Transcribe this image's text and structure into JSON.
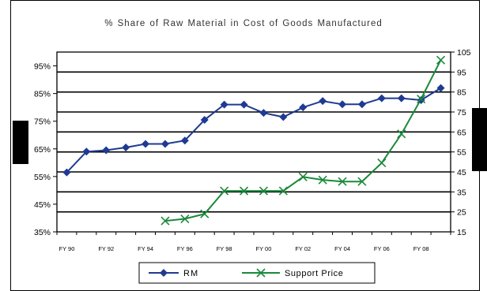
{
  "chart_data": {
    "type": "line",
    "title": "% Share of Raw Material in Cost of Goods Manufactured",
    "x": [
      "FY90",
      "FY91",
      "FY92",
      "FY93",
      "FY94",
      "FY95",
      "FY96",
      "FY97",
      "FY98",
      "FY99",
      "FY00",
      "FY01",
      "FY02",
      "FY03",
      "FY04",
      "FY05",
      "FY06",
      "FY07",
      "FY08",
      "FY09"
    ],
    "x_tick_labels": [
      "FY 90",
      "FY 92",
      "FY 94",
      "FY 96",
      "FY 98",
      "FY 00",
      "FY 02",
      "FY 04",
      "FY 06",
      "FY 08"
    ],
    "y_left": {
      "ticks": [
        "35%",
        "45%",
        "55%",
        "65%",
        "75%",
        "85%",
        "95%"
      ],
      "range": [
        35,
        100
      ]
    },
    "y_right": {
      "ticks": [
        "15",
        "25",
        "35",
        "45",
        "55",
        "65",
        "75",
        "85",
        "95",
        "105"
      ],
      "range": [
        15,
        105
      ]
    },
    "grid": "horizontal",
    "legend_position": "bottom",
    "series": [
      {
        "name": "RM",
        "axis": "left",
        "color": "#1f3a93",
        "marker": "diamond",
        "values": [
          56.5,
          64,
          64.5,
          65.5,
          66.8,
          66.8,
          68,
          75.5,
          81,
          81,
          78,
          76.5,
          80,
          82.3,
          81.1,
          81.1,
          83.3,
          83.3,
          82.6,
          87
        ]
      },
      {
        "name": "Support Price",
        "axis": "right",
        "color": "#1a8a3a",
        "marker": "x",
        "values": [
          null,
          null,
          null,
          null,
          null,
          20.5,
          21.5,
          24,
          35.5,
          35.5,
          35.5,
          35.5,
          42.5,
          41,
          40.2,
          40.2,
          49.5,
          64,
          81.5,
          101
        ]
      }
    ]
  }
}
